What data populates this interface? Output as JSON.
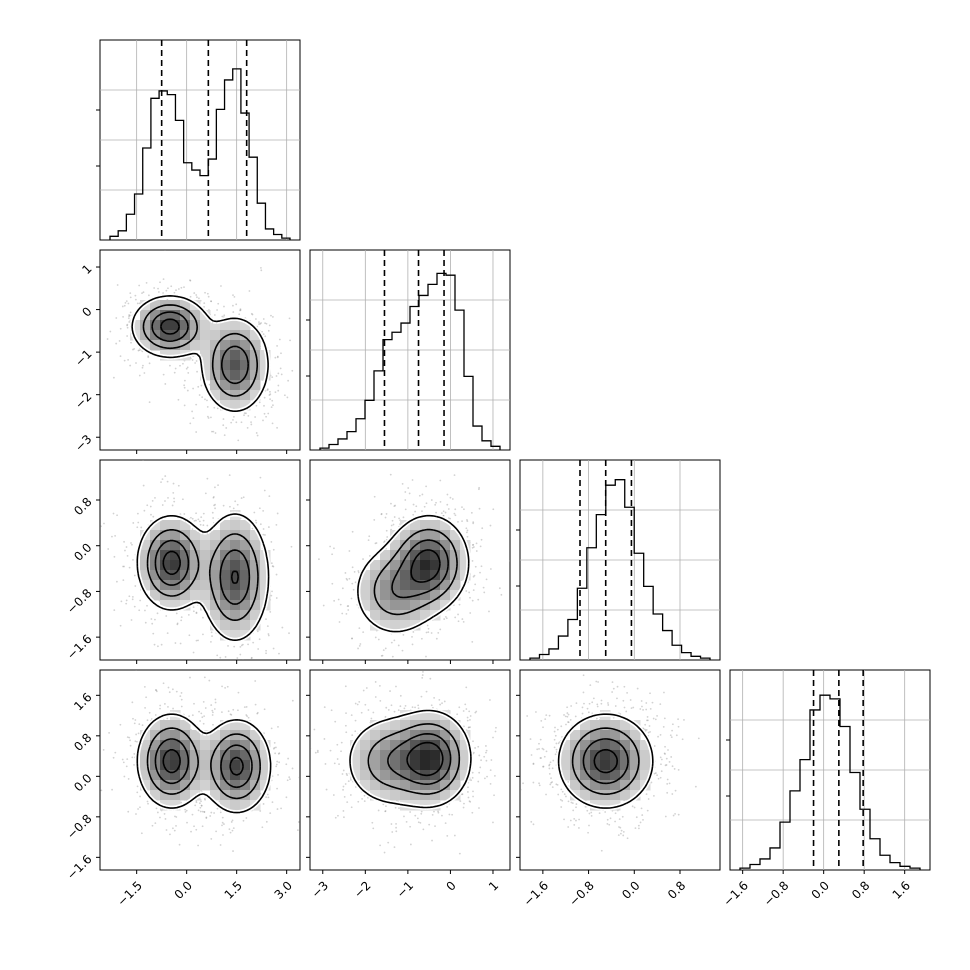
{
  "chart_data": {
    "type": "corner",
    "title": "",
    "variables": [
      {
        "ticks": [
          -1.5,
          0.0,
          1.5,
          3.0
        ],
        "tick_labels": [
          "−1.5",
          "0.0",
          "1.5",
          "3.0"
        ],
        "range": [
          -2.6,
          3.4
        ],
        "quantiles": [
          -0.75,
          0.65,
          1.8
        ]
      },
      {
        "ticks": [
          -3,
          -2,
          -1,
          0,
          1
        ],
        "tick_labels": [
          "−3",
          "−2",
          "−1",
          "0",
          "1"
        ],
        "range": [
          -3.3,
          1.4
        ],
        "quantiles": [
          -1.55,
          -0.75,
          -0.15
        ]
      },
      {
        "ticks": [
          -1.6,
          -0.8,
          0.0,
          0.8
        ],
        "tick_labels": [
          "−1.6",
          "−0.8",
          "0.0",
          "0.8"
        ],
        "range": [
          -2.0,
          1.5
        ],
        "quantiles": [
          -0.95,
          -0.5,
          -0.05
        ]
      },
      {
        "ticks": [
          -1.6,
          -0.8,
          0.0,
          0.8,
          1.6
        ],
        "tick_labels": [
          "−1.6",
          "−0.8",
          "0.0",
          "0.8",
          "1.6"
        ],
        "range": [
          -1.85,
          2.1
        ],
        "quantiles": [
          -0.2,
          0.3,
          0.78
        ]
      }
    ],
    "histograms": [
      {
        "var": 0,
        "counts": [
          0.02,
          0.05,
          0.14,
          0.25,
          0.5,
          0.77,
          0.81,
          0.79,
          0.65,
          0.42,
          0.38,
          0.35,
          0.44,
          0.71,
          0.87,
          0.93,
          0.69,
          0.45,
          0.2,
          0.06,
          0.03,
          0.01
        ]
      },
      {
        "var": 1,
        "counts": [
          0.01,
          0.03,
          0.06,
          0.1,
          0.17,
          0.27,
          0.43,
          0.6,
          0.64,
          0.69,
          0.78,
          0.84,
          0.9,
          0.96,
          0.95,
          0.76,
          0.4,
          0.13,
          0.05,
          0.02
        ]
      },
      {
        "var": 2,
        "counts": [
          0.01,
          0.03,
          0.06,
          0.13,
          0.22,
          0.39,
          0.61,
          0.79,
          0.95,
          0.98,
          0.83,
          0.58,
          0.4,
          0.25,
          0.16,
          0.08,
          0.04,
          0.02,
          0.01
        ]
      },
      {
        "var": 3,
        "counts": [
          0.01,
          0.03,
          0.06,
          0.12,
          0.26,
          0.43,
          0.6,
          0.87,
          0.95,
          0.93,
          0.78,
          0.53,
          0.33,
          0.17,
          0.08,
          0.04,
          0.02,
          0.01
        ]
      }
    ],
    "density_modes": [
      {
        "x": 0,
        "y": 1,
        "modes": [
          {
            "cx": -0.5,
            "cy": -0.4,
            "sx": 0.55,
            "sy": 0.35,
            "w": 1.0
          },
          {
            "cx": 1.45,
            "cy": -1.3,
            "sx": 0.5,
            "sy": 0.55,
            "w": 0.85
          }
        ]
      },
      {
        "x": 0,
        "y": 2,
        "modes": [
          {
            "cx": -0.45,
            "cy": -0.3,
            "sx": 0.5,
            "sy": 0.4,
            "w": 1.0
          },
          {
            "cx": 1.45,
            "cy": -0.55,
            "sx": 0.5,
            "sy": 0.55,
            "w": 0.9
          }
        ]
      },
      {
        "x": 0,
        "y": 3,
        "modes": [
          {
            "cx": -0.45,
            "cy": 0.3,
            "sx": 0.5,
            "sy": 0.45,
            "w": 1.0
          },
          {
            "cx": 1.5,
            "cy": 0.2,
            "sx": 0.5,
            "sy": 0.45,
            "w": 0.95
          }
        ]
      },
      {
        "x": 1,
        "y": 2,
        "modes": [
          {
            "cx": -0.5,
            "cy": -0.3,
            "sx": 0.45,
            "sy": 0.4,
            "w": 1.0
          },
          {
            "cx": -1.3,
            "cy": -0.8,
            "sx": 0.5,
            "sy": 0.4,
            "w": 0.55
          }
        ]
      },
      {
        "x": 1,
        "y": 3,
        "modes": [
          {
            "cx": -0.45,
            "cy": 0.35,
            "sx": 0.45,
            "sy": 0.45,
            "w": 1.0
          },
          {
            "cx": -1.4,
            "cy": 0.3,
            "sx": 0.55,
            "sy": 0.45,
            "w": 0.55
          }
        ]
      },
      {
        "x": 2,
        "y": 3,
        "modes": [
          {
            "cx": -0.5,
            "cy": 0.3,
            "sx": 0.4,
            "sy": 0.45,
            "w": 1.0
          }
        ]
      }
    ],
    "colors": {
      "line": "#000000",
      "grid": "#b0b0b0",
      "points": "#7f7f7f"
    },
    "grid": true
  }
}
